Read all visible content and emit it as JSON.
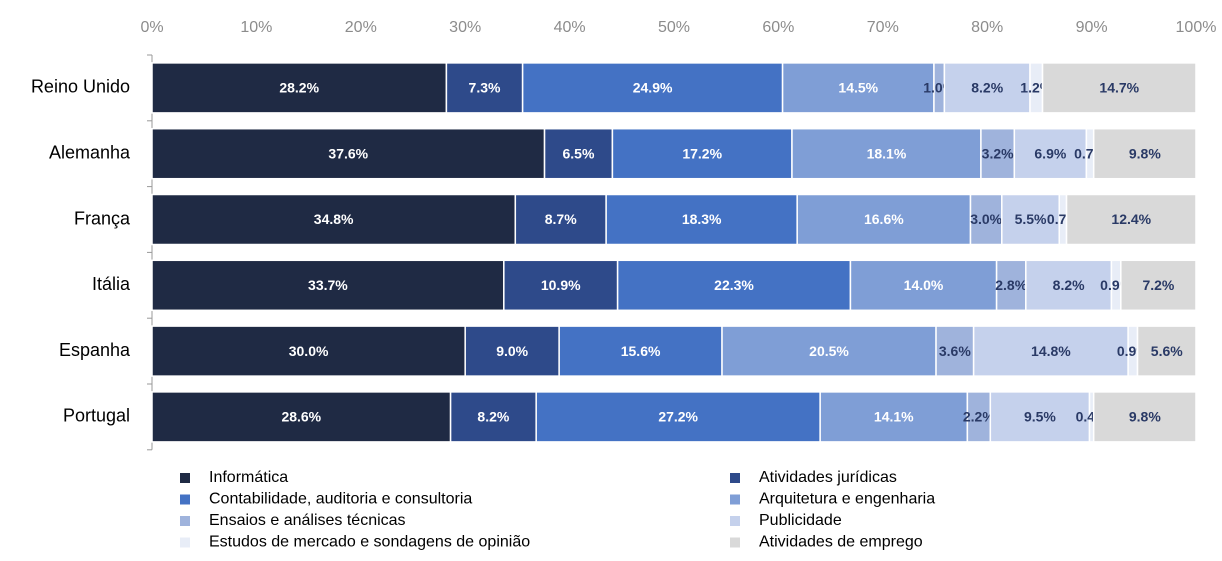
{
  "chart_data": {
    "type": "stacked_bar_horizontal",
    "categories": [
      "Reino Unido",
      "Alemanha",
      "França",
      "Itália",
      "Espanha",
      "Portugal"
    ],
    "series": [
      {
        "name": "Informática",
        "color": "#1f2a44",
        "values": [
          28.2,
          37.6,
          34.8,
          33.7,
          30.0,
          28.6
        ],
        "value_labels": [
          "28.2%",
          "37.6%",
          "34.8%",
          "33.7%",
          "30.0%",
          "28.6%"
        ]
      },
      {
        "name": "Atividades jurídicas",
        "color": "#2e4a8a",
        "values": [
          7.3,
          6.5,
          8.7,
          10.9,
          9.0,
          8.2
        ],
        "value_labels": [
          "7.3%",
          "6.5%",
          "8.7%",
          "10.9%",
          "9.0%",
          "8.2%"
        ]
      },
      {
        "name": "Contabilidade, auditoria e consultoria",
        "color": "#4472c4",
        "values": [
          24.9,
          17.2,
          18.3,
          22.3,
          15.6,
          27.2
        ],
        "value_labels": [
          "24.9%",
          "17.2%",
          "18.3%",
          "22.3%",
          "15.6%",
          "27.2%"
        ]
      },
      {
        "name": "Arquitetura e engenharia",
        "color": "#7f9ed6",
        "values": [
          14.5,
          18.1,
          16.6,
          14.0,
          20.5,
          14.1
        ],
        "value_labels": [
          "14.5%",
          "18.1%",
          "16.6%",
          "14.0%",
          "20.5%",
          "14.1%"
        ]
      },
      {
        "name": "Ensaios e análises técnicas",
        "color": "#9fb3dc",
        "values": [
          1.0,
          3.2,
          3.0,
          2.8,
          3.6,
          2.2
        ],
        "value_labels": [
          "1.0%",
          "3.2%",
          "3.0%",
          "2.8%",
          "3.6%",
          "2.2%"
        ]
      },
      {
        "name": "Publicidade",
        "color": "#c5d1ec",
        "values": [
          8.2,
          6.9,
          5.5,
          8.2,
          14.8,
          9.5
        ],
        "value_labels": [
          "8.2%",
          "6.9%",
          "5.5%",
          "8.2%",
          "14.8%",
          "9.5%"
        ]
      },
      {
        "name": "Estudos de mercado e sondagens de opinião",
        "color": "#e8edf7",
        "values": [
          1.2,
          0.7,
          0.7,
          0.9,
          0.9,
          0.4
        ],
        "value_labels": [
          "1.2%",
          "0.7%",
          "0.7%",
          "0.9%",
          "0.9%",
          "0.4%"
        ]
      },
      {
        "name": "Atividades de emprego",
        "color": "#d9d9d9",
        "values": [
          14.7,
          9.8,
          12.4,
          7.2,
          5.6,
          9.8
        ],
        "value_labels": [
          "14.7%",
          "9.8%",
          "12.4%",
          "7.2%",
          "5.6%",
          "9.8%"
        ]
      }
    ],
    "xlim": [
      0,
      100
    ],
    "xticks": [
      {
        "value": 0,
        "label": "0%"
      },
      {
        "value": 10,
        "label": "10%"
      },
      {
        "value": 20,
        "label": "20%"
      },
      {
        "value": 30,
        "label": "30%"
      },
      {
        "value": 40,
        "label": "40%"
      },
      {
        "value": 50,
        "label": "50%"
      },
      {
        "value": 60,
        "label": "60%"
      },
      {
        "value": 70,
        "label": "70%"
      },
      {
        "value": 80,
        "label": "80%"
      },
      {
        "value": 90,
        "label": "90%"
      },
      {
        "value": 100,
        "label": "100%"
      }
    ],
    "grid": false,
    "legend": "bottom"
  }
}
